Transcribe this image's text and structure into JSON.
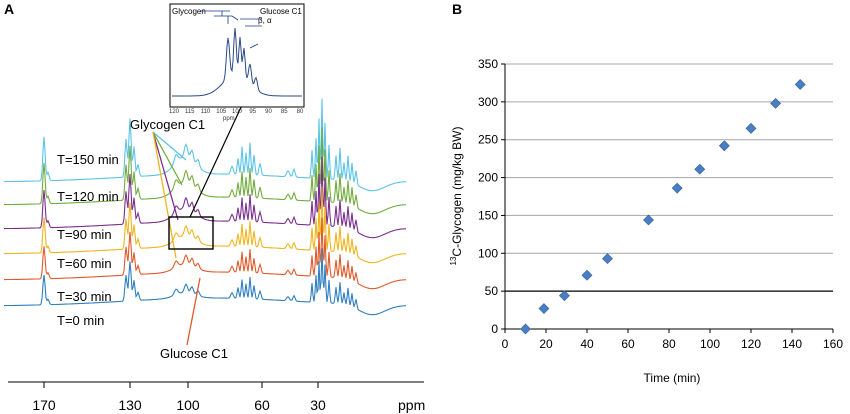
{
  "panel_a": {
    "letter": "A",
    "x_ticks": [
      "170",
      "130",
      "100",
      "60",
      "30"
    ],
    "x_unit": "ppm",
    "trace_labels": [
      "T=150 min",
      "T=120 min",
      "T=90 min",
      "T=60 min",
      "T=30 min",
      "T=0 min"
    ],
    "trace_colors": [
      "#5bc4e6",
      "#72ac3c",
      "#7b2f8e",
      "#f0b41e",
      "#e05a2a",
      "#2f7fc1"
    ],
    "annotation_glycogen": "Glycogen C1",
    "annotation_glucose": "Glucose C1",
    "inset": {
      "label_glycogen": "Glycogen",
      "label_glucose": "Glucose C1",
      "label_beta_alpha": "β, α",
      "x_ticks": [
        "120",
        "115",
        "110",
        "105",
        "100",
        "95",
        "90",
        "85",
        "80"
      ],
      "x_unit": "ppm"
    }
  },
  "chart_data": {
    "type": "scatter",
    "panel": "B",
    "title": "",
    "xlabel": "Time (min)",
    "ylabel_sup": "13",
    "ylabel_rest": "C-Glycogen (mg/kg BW)",
    "xlim": [
      0,
      160
    ],
    "ylim": [
      0,
      350
    ],
    "x_ticks": [
      0,
      20,
      40,
      60,
      80,
      100,
      120,
      140,
      160
    ],
    "y_ticks": [
      0,
      50,
      100,
      150,
      200,
      250,
      300,
      350
    ],
    "grid": "horizontal",
    "marker": "diamond",
    "marker_color": "#4a7ec3",
    "series": [
      {
        "name": "13C-Glycogen",
        "x": [
          10,
          19,
          29,
          40,
          50,
          70,
          84,
          95,
          107,
          120,
          132,
          144
        ],
        "y": [
          0,
          27,
          44,
          71,
          93,
          144,
          186,
          211,
          242,
          265,
          298,
          323
        ]
      }
    ]
  }
}
